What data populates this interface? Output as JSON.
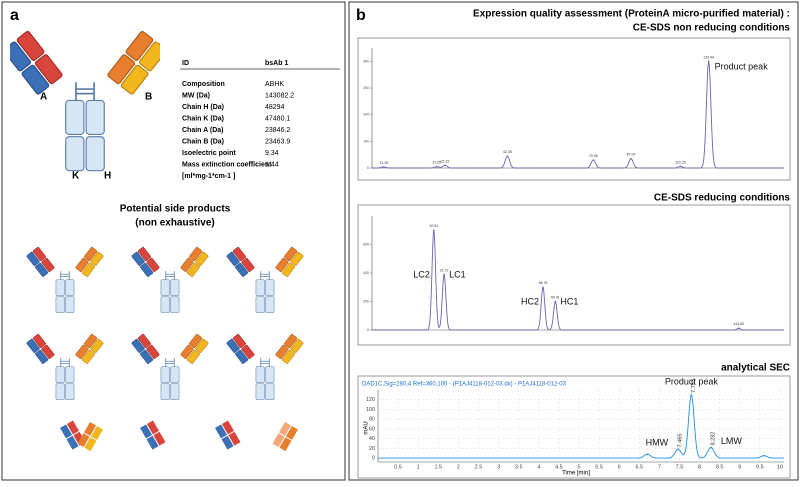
{
  "panel_a": {
    "label": "a",
    "chain_labels": [
      "A",
      "B",
      "K",
      "H"
    ],
    "table": {
      "header": [
        "ID",
        "bsAb 1"
      ],
      "rows": [
        [
          "Composition",
          "ABHK"
        ],
        [
          "MW (Da)",
          143082.2
        ],
        [
          "Chain H (Da)",
          48294
        ],
        [
          "Chain K (Da)",
          47480.1
        ],
        [
          "Chain A (Da)",
          23846.2
        ],
        [
          "Chain B (Da)",
          23463.9
        ],
        [
          "Isoelectric point",
          9.34
        ],
        [
          "Mass extinction coefficient",
          1.44
        ]
      ],
      "unit_note": "[ml*mg-1*cm-1 ]"
    },
    "side_products_title": [
      "Potential side products",
      "(non exhaustive)"
    ]
  },
  "panel_b": {
    "label": "b",
    "title": [
      "Expression quality assessment (ProteinA micro-purified material) :",
      "CE-SDS non reducing conditions"
    ],
    "charts": [
      {
        "type": "line",
        "xlim": [
          10,
          45
        ],
        "ylim": [
          0,
          450
        ],
        "yticks": [
          0,
          100,
          200,
          300,
          400
        ],
        "peaks": [
          {
            "x": 11,
            "height": 4,
            "label": "11.15"
          },
          {
            "x": 15.5,
            "height": 5,
            "label": "21.05"
          },
          {
            "x": 16.2,
            "height": 10,
            "label": "22.22"
          },
          {
            "x": 21.5,
            "height": 45,
            "label": "42.35"
          },
          {
            "x": 28.8,
            "height": 30,
            "label": "70.95"
          },
          {
            "x": 32,
            "height": 35,
            "label": "87.00"
          },
          {
            "x": 36.2,
            "height": 6,
            "label": "110.25"
          },
          {
            "x": 38.6,
            "height": 400,
            "label": "132.49",
            "annotation": "Product peak"
          }
        ]
      },
      {
        "type": "line",
        "title": "CE-SDS  reducing conditions",
        "xlim": [
          16,
          36
        ],
        "ylim": [
          0,
          800
        ],
        "yticks": [
          0,
          200,
          400,
          600
        ],
        "peaks": [
          {
            "x": 19,
            "height": 700,
            "label": "20.91",
            "annotation": "LC2"
          },
          {
            "x": 19.5,
            "height": 390,
            "label": "21.72",
            "annotation": "LC1"
          },
          {
            "x": 24.3,
            "height": 300,
            "label": "46.78",
            "annotation": "HC2"
          },
          {
            "x": 24.9,
            "height": 200,
            "label": "50.41",
            "annotation": "HC1"
          },
          {
            "x": 33.8,
            "height": 12,
            "label": "144.60"
          }
        ]
      },
      {
        "type": "line",
        "title": "analytical SEC",
        "header": "DAD1C,Sig=280,4 Ref=360,100 - (P1AJ4118-012-03.dx) - P1AJ4118-012-03",
        "x_label": "Time [min]",
        "y_label": "mAU",
        "xlim": [
          0,
          10.1
        ],
        "ylim": [
          -8,
          140
        ],
        "xticks": [
          0.5,
          1,
          1.5,
          2,
          2.5,
          3,
          3.5,
          4,
          4.5,
          5,
          5.5,
          6,
          6.5,
          7,
          7.5,
          8,
          8.5,
          9,
          9.5,
          10
        ],
        "yticks": [
          0,
          20,
          40,
          60,
          80,
          100,
          120
        ],
        "peaks": [
          {
            "x": 6.7,
            "height": 8
          },
          {
            "x": 7.465,
            "height": 18,
            "label": "7.465",
            "annotation": "HMW"
          },
          {
            "x": 7.795,
            "height": 130,
            "label": "7.795",
            "annotation": "Product peak"
          },
          {
            "x": 8.282,
            "height": 22,
            "label": "8.282",
            "annotation": "LMW"
          },
          {
            "x": 9.6,
            "height": 5
          }
        ]
      }
    ]
  }
}
